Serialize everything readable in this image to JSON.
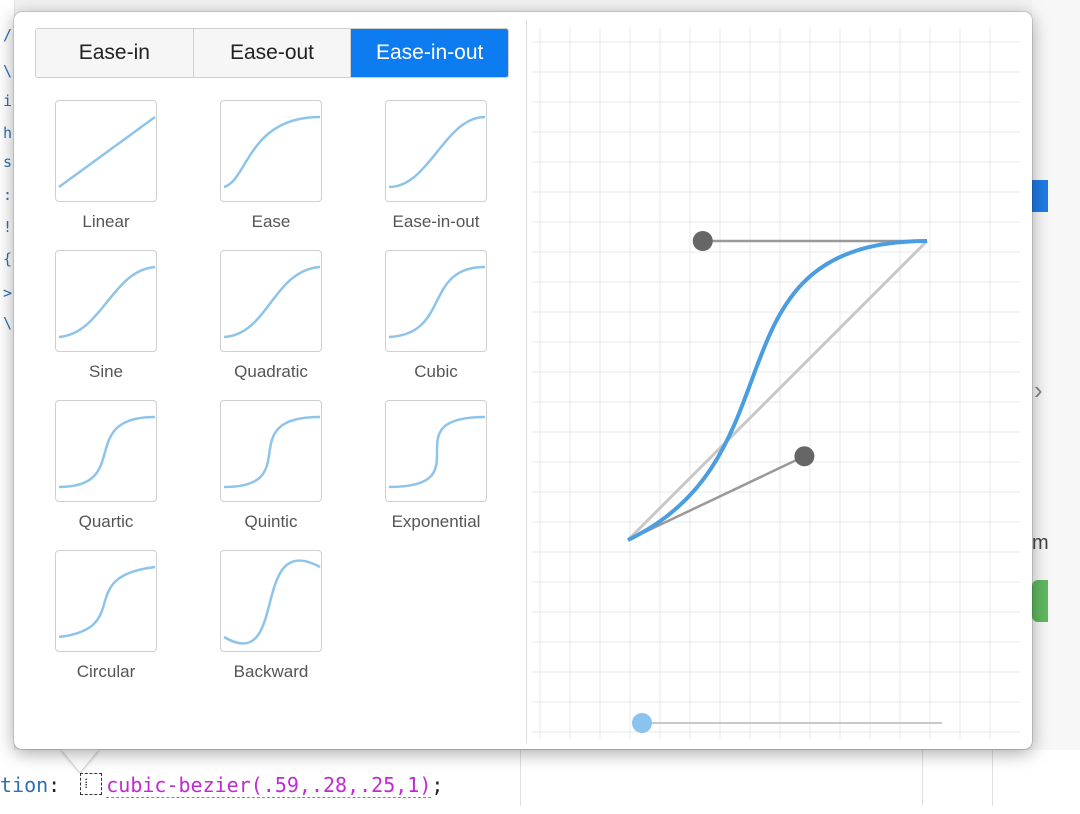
{
  "background": {
    "left_glyphs": [
      "/",
      "\\",
      "i",
      "h",
      "s",
      ":",
      "!",
      "{",
      ">",
      "\\"
    ],
    "code_property": "tion",
    "code_colon": ":",
    "swatch_glyph": "⁞",
    "code_value": "cubic-bezier(.59,.28,.25,1)",
    "code_semicolon": ";",
    "right_letter": "m"
  },
  "tabs": [
    {
      "label": "Ease-in",
      "active": false
    },
    {
      "label": "Ease-out",
      "active": false
    },
    {
      "label": "Ease-in-out",
      "active": true
    }
  ],
  "presets": [
    {
      "label": "Linear",
      "bezier": [
        0,
        0,
        1,
        1
      ]
    },
    {
      "label": "Ease",
      "bezier": [
        0.25,
        0.1,
        0.25,
        1
      ]
    },
    {
      "label": "Ease-in-out",
      "bezier": [
        0.42,
        0,
        0.58,
        1
      ]
    },
    {
      "label": "Sine",
      "bezier": [
        0.45,
        0.05,
        0.55,
        0.95
      ]
    },
    {
      "label": "Quadratic",
      "bezier": [
        0.455,
        0.03,
        0.515,
        0.955
      ]
    },
    {
      "label": "Cubic",
      "bezier": [
        0.645,
        0.045,
        0.355,
        1
      ]
    },
    {
      "label": "Quartic",
      "bezier": [
        0.77,
        0,
        0.175,
        1
      ]
    },
    {
      "label": "Quintic",
      "bezier": [
        0.86,
        0,
        0.07,
        1
      ]
    },
    {
      "label": "Exponential",
      "bezier": [
        1,
        0,
        0,
        1
      ]
    },
    {
      "label": "Circular",
      "bezier": [
        0.785,
        0.135,
        0.15,
        0.86
      ]
    },
    {
      "label": "Backward",
      "bezier": [
        0.68,
        -0.55,
        0.265,
        1.55
      ]
    }
  ],
  "editor": {
    "bezier": [
      0.59,
      0.28,
      0.25,
      1
    ],
    "curve_color": "#4a9de0",
    "handle_color": "#666666",
    "preview_dot_color": "#8cc2ee"
  }
}
